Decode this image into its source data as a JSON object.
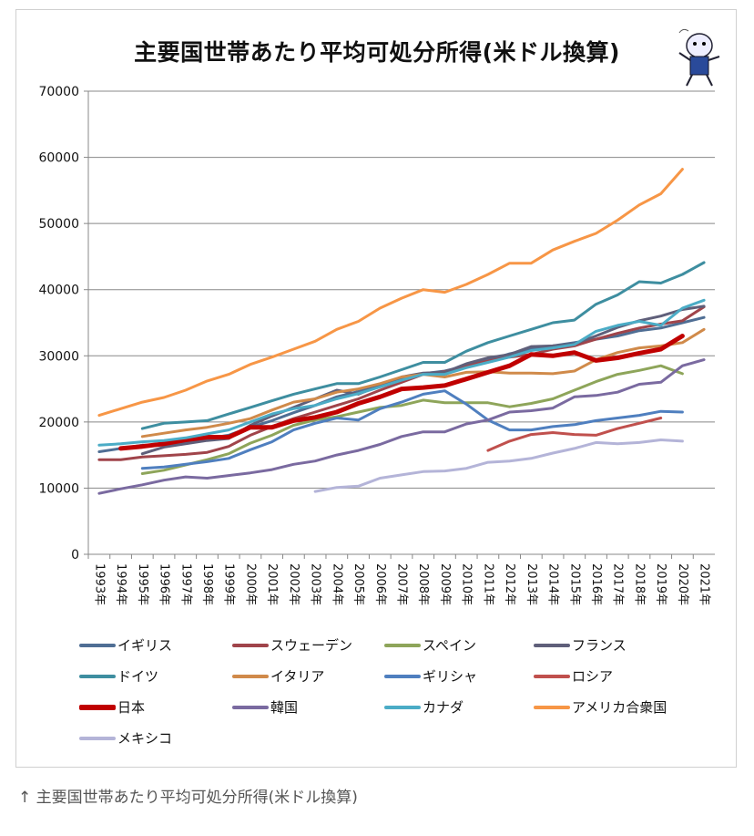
{
  "caption": "↑ 主要国世帯あたり平均可処分所得(米ドル換算)",
  "chart_data": {
    "type": "line",
    "title": "主要国世帯あたり平均可処分所得(米ドル換算)",
    "xlabel": "",
    "ylabel": "",
    "ylim": [
      0,
      70000
    ],
    "yticks": [
      "0",
      "10000",
      "20000",
      "30000",
      "40000",
      "50000",
      "60000",
      "70000"
    ],
    "grid": true,
    "legend_position": "bottom",
    "categories": [
      "1993年",
      "1994年",
      "1995年",
      "1996年",
      "1997年",
      "1998年",
      "1999年",
      "2000年",
      "2001年",
      "2002年",
      "2003年",
      "2004年",
      "2005年",
      "2006年",
      "2007年",
      "2008年",
      "2009年",
      "2010年",
      "2011年",
      "2012年",
      "2013年",
      "2014年",
      "2015年",
      "2016年",
      "2017年",
      "2018年",
      "2019年",
      "2020年",
      "2021年"
    ],
    "series": [
      {
        "name": "イギリス",
        "color": "#4f6e94",
        "values": [
          15500,
          16000,
          16500,
          16500,
          17000,
          17500,
          18000,
          19200,
          20200,
          21400,
          22500,
          23800,
          24600,
          25400,
          26500,
          27300,
          27700,
          28500,
          29300,
          30300,
          31000,
          31500,
          32000,
          32500,
          33000,
          33800,
          34200,
          35000,
          35800
        ]
      },
      {
        "name": "スウェーデン",
        "color": "#a0444a",
        "values": [
          14300,
          14300,
          14700,
          14900,
          15100,
          15400,
          16300,
          18000,
          19300,
          20500,
          21500,
          22500,
          23500,
          24800,
          26000,
          27200,
          27600,
          28500,
          29200,
          29800,
          30200,
          31000,
          31500,
          32500,
          33400,
          34200,
          34800,
          35300,
          37400
        ]
      },
      {
        "name": "スペイン",
        "color": "#8ea55a",
        "values": [
          null,
          null,
          12200,
          12700,
          13500,
          14300,
          15200,
          16800,
          18000,
          19500,
          20300,
          20800,
          21500,
          22200,
          22500,
          23300,
          22900,
          22900,
          22900,
          22300,
          22800,
          23500,
          24800,
          26100,
          27200,
          27800,
          28500,
          27300,
          null
        ]
      },
      {
        "name": "フランス",
        "color": "#5f5f7a",
        "values": [
          null,
          null,
          15200,
          16200,
          16700,
          17200,
          17500,
          19500,
          20900,
          22200,
          23500,
          24800,
          24200,
          25500,
          26800,
          27400,
          27500,
          28800,
          29700,
          30200,
          31400,
          31500,
          31800,
          33000,
          34300,
          35300,
          36000,
          37000,
          37500
        ]
      },
      {
        "name": "ドイツ",
        "color": "#3e8ea0",
        "values": [
          null,
          null,
          19000,
          19800,
          20000,
          20200,
          21200,
          22200,
          23200,
          24200,
          25000,
          25800,
          25800,
          26800,
          27900,
          29000,
          29000,
          30700,
          32000,
          33000,
          34000,
          35000,
          35400,
          37800,
          39200,
          41200,
          41000,
          42300,
          44100
        ]
      },
      {
        "name": "イタリア",
        "color": "#d08a4a",
        "values": [
          null,
          null,
          17800,
          18300,
          18800,
          19200,
          19800,
          20500,
          21800,
          23000,
          23500,
          24500,
          25000,
          25800,
          26800,
          27200,
          26800,
          27500,
          27600,
          27400,
          27400,
          27300,
          27700,
          29400,
          30500,
          31200,
          31500,
          32000,
          34000
        ]
      },
      {
        "name": "ギリシャ",
        "color": "#4f7fbf",
        "values": [
          null,
          null,
          13000,
          13200,
          13600,
          14000,
          14500,
          15800,
          17000,
          18800,
          19800,
          20600,
          20300,
          22000,
          23000,
          24200,
          24700,
          22700,
          20300,
          18800,
          18800,
          19300,
          19600,
          20200,
          20600,
          21000,
          21600,
          21500,
          null
        ]
      },
      {
        "name": "ロシア",
        "color": "#c0504d",
        "values": [
          null,
          null,
          null,
          null,
          null,
          null,
          null,
          null,
          null,
          null,
          null,
          null,
          null,
          null,
          null,
          null,
          null,
          null,
          15700,
          17100,
          18100,
          18400,
          18100,
          18000,
          19000,
          19800,
          20600,
          null,
          null
        ]
      },
      {
        "name": "日本",
        "color": "#c00000",
        "values": [
          null,
          16000,
          16300,
          16700,
          17300,
          17700,
          17700,
          19200,
          19200,
          20200,
          20700,
          21500,
          22800,
          23800,
          25000,
          25200,
          25500,
          26500,
          27500,
          28500,
          30200,
          30000,
          30500,
          29300,
          29700,
          30400,
          31000,
          33000,
          null
        ]
      },
      {
        "name": "韓国",
        "color": "#7a6aa0",
        "values": [
          9200,
          9900,
          10500,
          11200,
          11700,
          11500,
          11900,
          12300,
          12800,
          13600,
          14100,
          15000,
          15700,
          16600,
          17800,
          18500,
          18500,
          19700,
          20300,
          21500,
          21700,
          22100,
          23800,
          24000,
          24500,
          25700,
          26000,
          28500,
          29400
        ]
      },
      {
        "name": "カナダ",
        "color": "#4bacc6",
        "values": [
          16500,
          16700,
          17000,
          17200,
          17600,
          18200,
          18800,
          20000,
          21200,
          22000,
          22500,
          23500,
          24300,
          25300,
          26300,
          27200,
          27200,
          28200,
          29000,
          29800,
          30800,
          31200,
          31700,
          33700,
          34600,
          35200,
          34600,
          37200,
          38400
        ]
      },
      {
        "name": "アメリカ合衆国",
        "color": "#f79646",
        "values": [
          21000,
          22000,
          23000,
          23700,
          24800,
          26200,
          27200,
          28700,
          29800,
          31000,
          32200,
          34000,
          35200,
          37200,
          38700,
          40000,
          39600,
          40800,
          42300,
          44000,
          44000,
          46000,
          47300,
          48500,
          50500,
          52800,
          54500,
          58200,
          null
        ]
      },
      {
        "name": "メキシコ",
        "color": "#b4b4d8",
        "values": [
          null,
          null,
          null,
          null,
          null,
          null,
          null,
          null,
          null,
          null,
          9500,
          10100,
          10300,
          11500,
          12000,
          12500,
          12600,
          13000,
          13900,
          14100,
          14500,
          15300,
          16000,
          16900,
          16700,
          16900,
          17300,
          17100,
          null
        ]
      }
    ]
  }
}
